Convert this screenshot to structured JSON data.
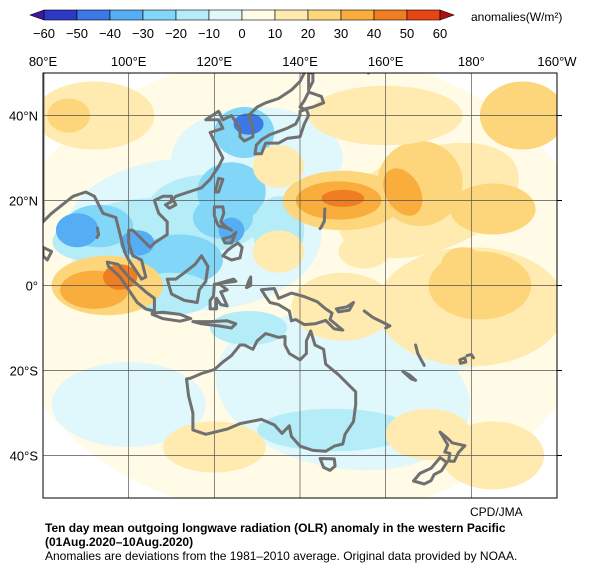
{
  "legend": {
    "unit": "anomalies(W/m²)",
    "ticks": [
      "−60",
      "−50",
      "−40",
      "−30",
      "−20",
      "−10",
      "0",
      "10",
      "20",
      "30",
      "40",
      "50",
      "60"
    ],
    "colors": [
      "#2b39c4",
      "#3c78e8",
      "#55aef3",
      "#82d6f7",
      "#b4ecf7",
      "#e0f8fb",
      "#fffbe6",
      "#ffeab0",
      "#fdd57a",
      "#f8ad3d",
      "#f17d22",
      "#e84414"
    ]
  },
  "map": {
    "lon_labels": [
      "80°E",
      "100°E",
      "120°E",
      "140°E",
      "160°E",
      "180°",
      "160°W"
    ],
    "lat_labels": [
      "40°N",
      "20°N",
      "0°",
      "20°S",
      "40°S"
    ],
    "coast_color": "#707070",
    "ocean_color": "#ffffff"
  },
  "credit": "CPD/JMA",
  "caption": {
    "title_line1": "Ten day mean outgoing longwave radiation (OLR) anomaly in the western Pacific",
    "title_line2": "(01Aug.2020–10Aug.2020)",
    "note": "Anomalies are deviations from the 1981–2010 average. Original data provided by NOAA."
  }
}
